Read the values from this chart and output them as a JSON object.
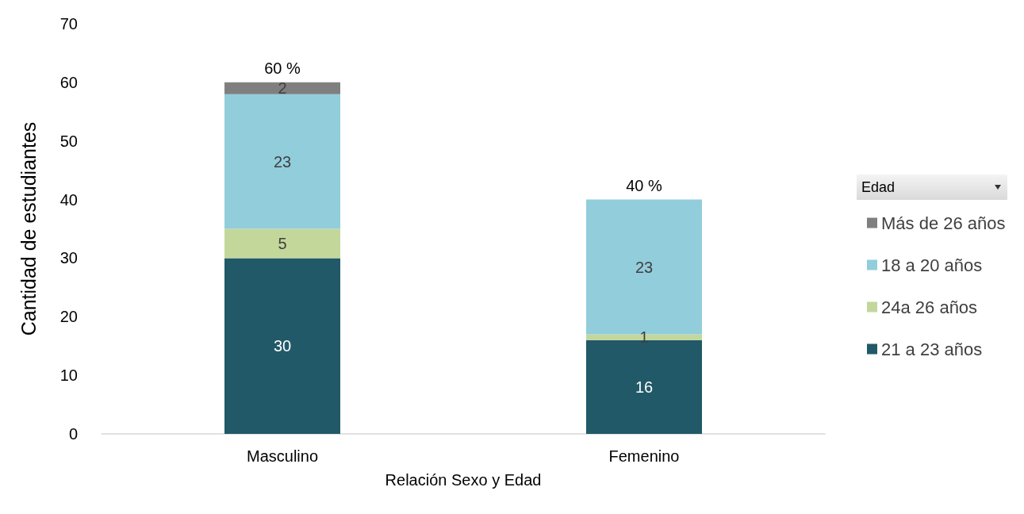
{
  "chart_data": {
    "type": "bar",
    "stacked": true,
    "xlabel": "Relación Sexo y Edad",
    "ylabel": "Cantidad de estudiantes",
    "legend_title": "Edad",
    "categories": [
      "Masculino",
      "Femenino"
    ],
    "series": [
      {
        "name": "21 a 23 años",
        "color": "#215968",
        "values": [
          30,
          16
        ]
      },
      {
        "name": "24a 26 años",
        "color": "#c4d79b",
        "values": [
          5,
          1
        ]
      },
      {
        "name": "18 a 20 años",
        "color": "#92cddc",
        "values": [
          23,
          23
        ]
      },
      {
        "name": "Más de 26 años",
        "color": "#7f7f7f",
        "values": [
          2,
          null
        ]
      }
    ],
    "ylim": [
      0,
      70
    ],
    "yticks": [
      0,
      10,
      20,
      30,
      40,
      50,
      60,
      70
    ],
    "grid": false,
    "legend": "right",
    "data_labels": true,
    "totals": [
      "60 %",
      "40 %"
    ]
  }
}
